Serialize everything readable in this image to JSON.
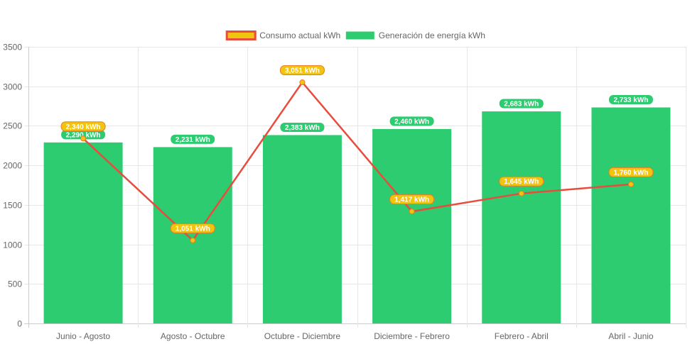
{
  "chart_data": {
    "type": "bar",
    "categories": [
      "Junio - Agosto",
      "Agosto - Octubre",
      "Octubre - Diciembre",
      "Diciembre - Febrero",
      "Febrero - Abril",
      "Abril - Junio"
    ],
    "y_ticks": [
      "0",
      "500",
      "1000",
      "1500",
      "2000",
      "2500",
      "3000",
      "3500"
    ],
    "ylim": [
      0,
      3500
    ],
    "grid": true,
    "legend_position": "top",
    "series": [
      {
        "name": "Consumo actual kWh",
        "type": "line",
        "values": [
          2340,
          1051,
          3051,
          1417,
          1645,
          1760
        ],
        "labels": [
          "2,340 kWh",
          "1,051 kWh",
          "3,051 kWh",
          "1,417 kWh",
          "1,645 kWh",
          "1,760 kWh"
        ],
        "color": "#e74c3c",
        "fill_color": "#f1c40f"
      },
      {
        "name": "Generación de energía kWh",
        "type": "bar",
        "values": [
          2290,
          2231,
          2383,
          2460,
          2683,
          2733
        ],
        "labels": [
          "2,290 kWh",
          "2,231 kWh",
          "2,383 kWh",
          "2,460 kWh",
          "2,683 kWh",
          "2,733 kWh"
        ],
        "color": "#2ecc71"
      }
    ]
  }
}
